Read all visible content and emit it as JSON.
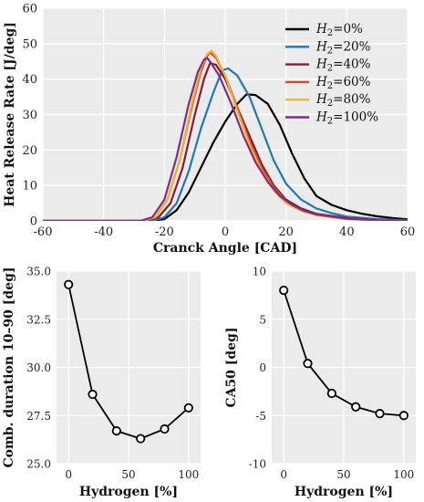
{
  "chart_data": [
    {
      "type": "line",
      "title": "",
      "xlabel": "Cranck Angle [CAD]",
      "ylabel": "Heat Release Rate [J/deg]",
      "xlim": [
        -60,
        60
      ],
      "ylim": [
        0,
        60
      ],
      "xticks": [
        "-60",
        "-40",
        "-20",
        "0",
        "20",
        "40",
        "60"
      ],
      "yticks": [
        "0",
        "10",
        "20",
        "30",
        "40",
        "50",
        "60"
      ],
      "grid": true,
      "legend_position": "top-right",
      "series": [
        {
          "name": "H",
          "sub": "2",
          "suffix": "=0%",
          "color": "#000000",
          "x": [
            -60,
            -25,
            -20,
            -16,
            -12,
            -8,
            -4,
            0,
            4,
            7,
            10,
            14,
            18,
            22,
            26,
            30,
            35,
            40,
            45,
            50,
            55,
            60
          ],
          "y": [
            0,
            0,
            0.5,
            3,
            8,
            15,
            22,
            28,
            33,
            35.7,
            35.5,
            33,
            27,
            19,
            12,
            7,
            4.5,
            3,
            2,
            1.3,
            0.8,
            0.4
          ]
        },
        {
          "name": "H",
          "sub": "2",
          "suffix": "=20%",
          "color": "#1f77b4",
          "x": [
            -60,
            -24,
            -20,
            -16,
            -12,
            -8,
            -4,
            -1,
            1,
            4,
            8,
            12,
            16,
            20,
            25,
            30,
            35,
            40,
            50,
            60
          ],
          "y": [
            0,
            0,
            1,
            5,
            14,
            26,
            36,
            42.5,
            43,
            41,
            35,
            26,
            17,
            10.5,
            6,
            3.5,
            2.2,
            1.2,
            0.5,
            0.2
          ]
        },
        {
          "name": "H",
          "sub": "2",
          "suffix": "=40%",
          "color": "#8b1a2b",
          "x": [
            -60,
            -26,
            -22,
            -18,
            -14,
            -10,
            -7,
            -5,
            -3,
            0,
            4,
            8,
            12,
            16,
            20,
            25,
            30,
            40,
            50,
            60
          ],
          "y": [
            0,
            0,
            1,
            5,
            15,
            30,
            40,
            44.5,
            44,
            40,
            32,
            24,
            16,
            10,
            6,
            3.5,
            2,
            0.8,
            0.3,
            0.1
          ]
        },
        {
          "name": "H",
          "sub": "2",
          "suffix": "=60%",
          "color": "#d84a2a",
          "x": [
            -60,
            -27,
            -23,
            -19,
            -15,
            -11,
            -8,
            -6,
            -5,
            -3,
            0,
            4,
            8,
            12,
            16,
            20,
            25,
            30,
            40,
            50,
            60
          ],
          "y": [
            0,
            0,
            1,
            6,
            17,
            32,
            42,
            46.5,
            47.5,
            46,
            41,
            32,
            22.5,
            15,
            9.5,
            5.5,
            3,
            1.8,
            0.6,
            0.2,
            0.1
          ]
        },
        {
          "name": "H",
          "sub": "2",
          "suffix": "=80%",
          "color": "#f2b233",
          "x": [
            -60,
            -27,
            -23,
            -19,
            -15,
            -11,
            -8,
            -6,
            -4.5,
            -3,
            0,
            4,
            8,
            12,
            16,
            20,
            25,
            30,
            40,
            50,
            60
          ],
          "y": [
            0,
            0,
            1,
            6,
            17,
            33,
            43,
            47,
            48,
            46.5,
            41,
            31,
            21.5,
            14,
            8.5,
            5,
            2.8,
            1.6,
            0.5,
            0.2,
            0.1
          ]
        },
        {
          "name": "H",
          "sub": "2",
          "suffix": "=100%",
          "color": "#7b2d8e",
          "x": [
            -60,
            -28,
            -24,
            -20,
            -16,
            -12,
            -9,
            -7,
            -6,
            -5,
            -2,
            2,
            6,
            10,
            14,
            18,
            22,
            26,
            30,
            40,
            50,
            60
          ],
          "y": [
            0,
            0,
            1,
            6,
            18,
            33,
            42,
            45.5,
            46,
            45,
            41,
            33,
            24,
            16.5,
            11,
            7,
            4.5,
            2.8,
            1.8,
            0.6,
            0.2,
            0.1
          ]
        }
      ]
    },
    {
      "type": "line",
      "title": "",
      "xlabel": "Hydrogen [%]",
      "ylabel": "Comb. duration 10–90 [deg]",
      "xlim": [
        -10,
        110
      ],
      "ylim": [
        25.0,
        35.0
      ],
      "xticks": [
        "0",
        "50",
        "100"
      ],
      "yticks": [
        "25.0",
        "27.5",
        "30.0",
        "32.5",
        "35.0"
      ],
      "grid": true,
      "series": [
        {
          "x": [
            0,
            20,
            40,
            60,
            80,
            100
          ],
          "y": [
            34.3,
            28.6,
            26.7,
            26.3,
            26.8,
            27.9
          ],
          "color": "#000000"
        }
      ]
    },
    {
      "type": "line",
      "title": "",
      "xlabel": "Hydrogen [%]",
      "ylabel": "CA50 [deg]",
      "xlim": [
        -10,
        110
      ],
      "ylim": [
        -10,
        10
      ],
      "xticks": [
        "0",
        "50",
        "100"
      ],
      "yticks": [
        "-10",
        "-5",
        "0",
        "5",
        "10"
      ],
      "grid": true,
      "series": [
        {
          "x": [
            0,
            20,
            40,
            60,
            80,
            100
          ],
          "y": [
            8.0,
            0.4,
            -2.7,
            -4.1,
            -4.8,
            -5.0
          ],
          "color": "#000000"
        }
      ]
    }
  ]
}
